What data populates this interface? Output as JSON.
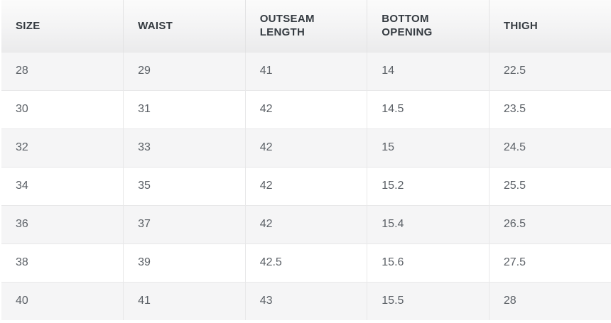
{
  "table": {
    "columns": [
      "SIZE",
      "WAIST",
      "OUTSEAM LENGTH",
      "BOTTOM OPENING",
      "THIGH"
    ],
    "rows": [
      [
        "28",
        "29",
        "41",
        "14",
        "22.5"
      ],
      [
        "30",
        "31",
        "42",
        "14.5",
        "23.5"
      ],
      [
        "32",
        "33",
        "42",
        "15",
        "24.5"
      ],
      [
        "34",
        "35",
        "42",
        "15.2",
        "25.5"
      ],
      [
        "36",
        "37",
        "42",
        "15.4",
        "26.5"
      ],
      [
        "38",
        "39",
        "42.5",
        "15.6",
        "27.5"
      ],
      [
        "40",
        "41",
        "43",
        "15.5",
        "28"
      ]
    ]
  },
  "colors": {
    "header_bg_top": "#fbfbfb",
    "header_bg_bottom": "#ebebec",
    "header_text": "#343a40",
    "row_text": "#5b6066",
    "stripe_row_bg": "#f5f5f6",
    "plain_row_bg": "#ffffff",
    "cell_border": "#e8e8e9"
  },
  "chart_data": {
    "type": "table",
    "title": "",
    "columns": [
      "SIZE",
      "WAIST",
      "OUTSEAM LENGTH",
      "BOTTOM OPENING",
      "THIGH"
    ],
    "rows": [
      [
        28,
        29,
        41,
        14,
        22.5
      ],
      [
        30,
        31,
        42,
        14.5,
        23.5
      ],
      [
        32,
        33,
        42,
        15,
        24.5
      ],
      [
        34,
        35,
        42,
        15.2,
        25.5
      ],
      [
        36,
        37,
        42,
        15.4,
        26.5
      ],
      [
        38,
        39,
        42.5,
        15.6,
        27.5
      ],
      [
        40,
        41,
        43,
        15.5,
        28
      ]
    ],
    "layout_hints": {
      "zebra_striping": true,
      "striped_rows": "odd (1st, 3rd, 5th, 7th)",
      "header_style": "bold uppercase on light gray gradient",
      "grid": "light vertical and horizontal cell borders"
    }
  }
}
